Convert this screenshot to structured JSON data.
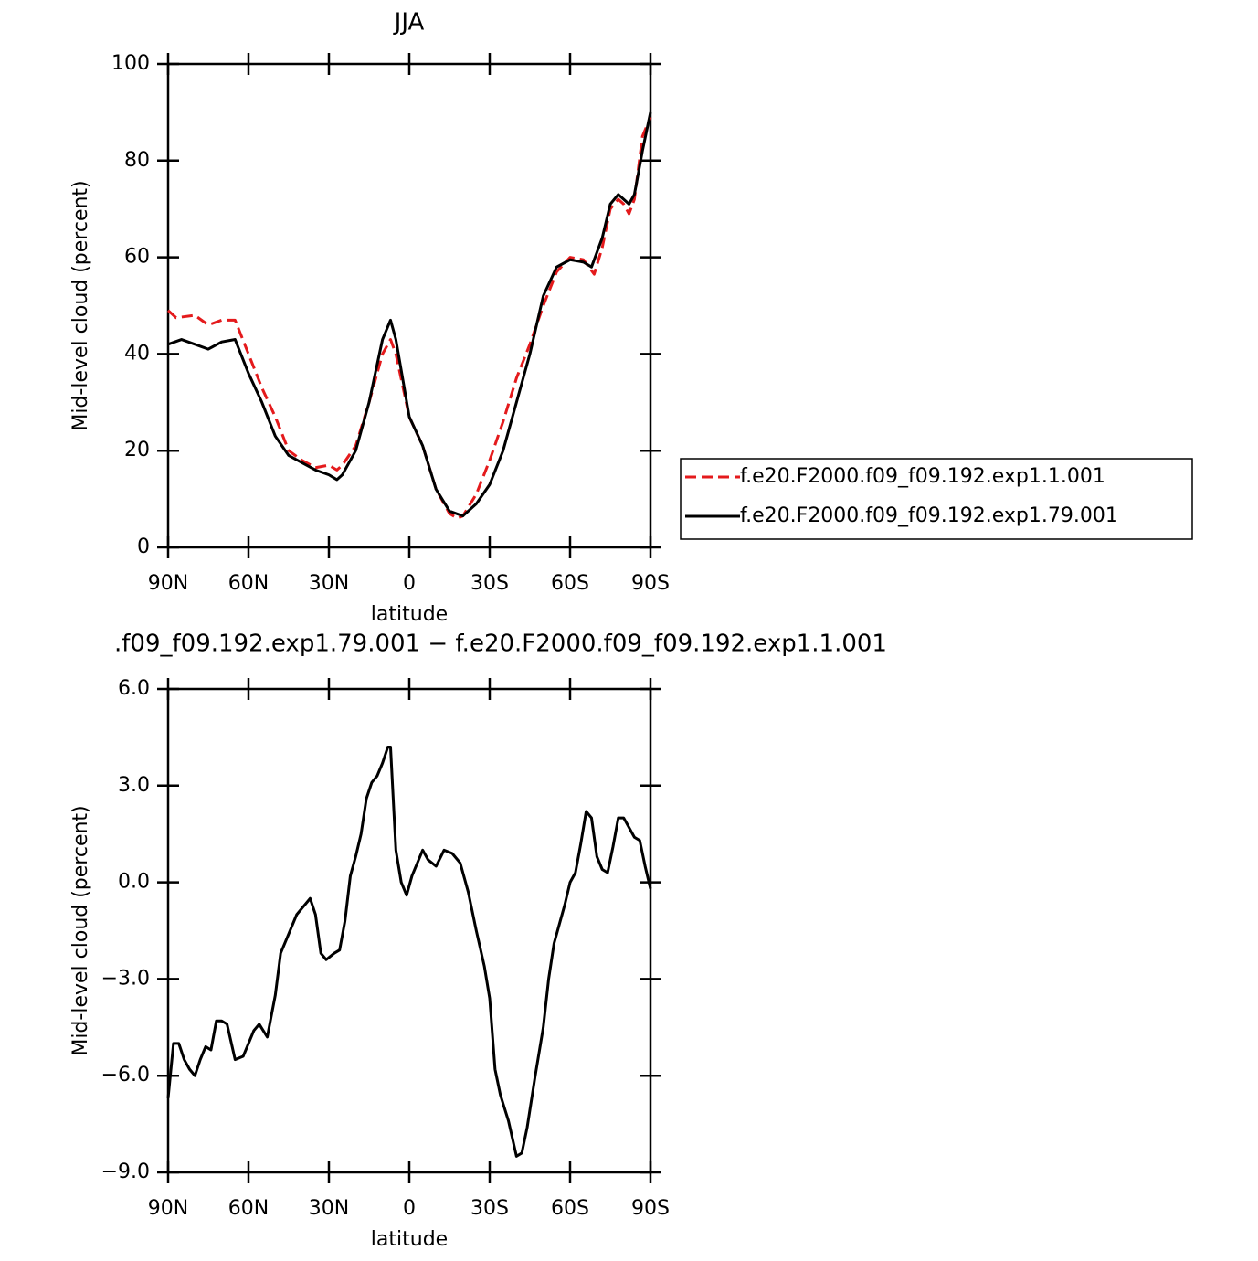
{
  "chart_data": [
    {
      "type": "line",
      "title": "JJA",
      "xlabel": "latitude",
      "ylabel": "Mid-level cloud (percent)",
      "xlim": [
        90,
        -90
      ],
      "ylim": [
        0,
        100
      ],
      "yticks": [
        0,
        20,
        40,
        60,
        80,
        100
      ],
      "xticks": [
        {
          "value": 90,
          "label": "90N"
        },
        {
          "value": 60,
          "label": "60N"
        },
        {
          "value": 30,
          "label": "30N"
        },
        0,
        {
          "value": -30,
          "label": "30S"
        },
        {
          "value": -60,
          "label": "60S"
        },
        {
          "value": -90,
          "label": "90S"
        }
      ],
      "legend": "right",
      "series": [
        {
          "name": "f.e20.F2000.f09_f09.192.exp1.1.001",
          "color": "#e41a1c",
          "dashed": true,
          "x": [
            90,
            87,
            80,
            75,
            70,
            65,
            60,
            55,
            50,
            45,
            40,
            35,
            30,
            27,
            25,
            20,
            15,
            10,
            7,
            5,
            0,
            -5,
            -10,
            -15,
            -18,
            -20,
            -25,
            -30,
            -35,
            -40,
            -45,
            -50,
            -55,
            -60,
            -65,
            -69,
            -72,
            -75,
            -78,
            -80,
            -82,
            -84,
            -87,
            -90
          ],
          "values": [
            49,
            47.5,
            48,
            46,
            47,
            47,
            40,
            33,
            27,
            20,
            18,
            16.5,
            17,
            16,
            17,
            21,
            30,
            40,
            43,
            40,
            27,
            21,
            12,
            7,
            6,
            6.5,
            11,
            18,
            26,
            35,
            42,
            50,
            57,
            60,
            59.5,
            56.5,
            62,
            70,
            72,
            71,
            69,
            72,
            85,
            89
          ]
        },
        {
          "name": "f.e20.F2000.f09_f09.192.exp1.79.001",
          "color": "#000000",
          "dashed": false,
          "x": [
            90,
            85,
            80,
            75,
            70,
            65,
            60,
            55,
            50,
            45,
            40,
            35,
            30,
            27,
            25,
            20,
            15,
            10,
            7,
            5,
            0,
            -5,
            -10,
            -15,
            -20,
            -25,
            -30,
            -35,
            -40,
            -45,
            -50,
            -55,
            -60,
            -65,
            -68,
            -72,
            -75,
            -78,
            -80,
            -82,
            -84,
            -87,
            -90
          ],
          "values": [
            42,
            43,
            42,
            41,
            42.5,
            43,
            36,
            30,
            23,
            19,
            17.5,
            16,
            15,
            14,
            15,
            20,
            30,
            43,
            47,
            43,
            27,
            21,
            12,
            7.5,
            6.5,
            9,
            13,
            20,
            30,
            40,
            52,
            58,
            59.5,
            59,
            58,
            64,
            71,
            73,
            72,
            71,
            73,
            82,
            90
          ]
        }
      ]
    },
    {
      "type": "line",
      "title": ".f09_f09.192.exp1.79.001 − f.e20.F2000.f09_f09.192.exp1.1.001",
      "xlabel": "latitude",
      "ylabel": "Mid-level cloud (percent)",
      "xlim": [
        90,
        -90
      ],
      "ylim": [
        -9,
        6
      ],
      "yticks": [
        {
          "value": -9,
          "label": "−9.0"
        },
        {
          "value": -6,
          "label": "−6.0"
        },
        {
          "value": -3,
          "label": "−3.0"
        },
        {
          "value": 0,
          "label": "0.0"
        },
        {
          "value": 3,
          "label": "3.0"
        },
        {
          "value": 6,
          "label": "6.0"
        }
      ],
      "xticks": [
        {
          "value": 90,
          "label": "90N"
        },
        {
          "value": 60,
          "label": "60N"
        },
        {
          "value": 30,
          "label": "30N"
        },
        0,
        {
          "value": -30,
          "label": "30S"
        },
        {
          "value": -60,
          "label": "60S"
        },
        {
          "value": -90,
          "label": "90S"
        }
      ],
      "series": [
        {
          "color": "#000000",
          "dashed": false,
          "x": [
            90,
            88,
            86,
            84,
            82,
            80,
            78,
            76,
            74,
            72,
            70,
            68,
            65,
            62,
            58,
            56,
            53,
            50,
            48,
            45,
            42,
            40,
            37,
            35,
            33,
            31,
            28,
            26,
            24,
            22,
            20,
            18,
            16,
            14,
            12,
            10,
            8,
            7,
            5,
            3,
            1,
            -1,
            -3,
            -5,
            -7,
            -10,
            -13,
            -16,
            -19,
            -22,
            -25,
            -28,
            -30,
            -32,
            -34,
            -37,
            -40,
            -42,
            -44,
            -47,
            -50,
            -52,
            -54,
            -56,
            -58,
            -60,
            -62,
            -64,
            -66,
            -68,
            -70,
            -72,
            -74,
            -76,
            -78,
            -80,
            -82,
            -84,
            -86,
            -88,
            -90
          ],
          "values": [
            -6.7,
            -5,
            -5,
            -5.5,
            -5.8,
            -6,
            -5.5,
            -5.1,
            -5.2,
            -4.3,
            -4.3,
            -4.4,
            -5.5,
            -5.4,
            -4.6,
            -4.4,
            -4.8,
            -3.5,
            -2.2,
            -1.6,
            -1,
            -0.8,
            -0.5,
            -1,
            -2.2,
            -2.4,
            -2.2,
            -2.1,
            -1.2,
            0.2,
            0.8,
            1.5,
            2.6,
            3.1,
            3.3,
            3.7,
            4.2,
            4.2,
            1,
            0,
            -0.4,
            0.2,
            0.6,
            1,
            0.7,
            0.5,
            1,
            0.9,
            0.6,
            -0.3,
            -1.5,
            -2.6,
            -3.6,
            -5.8,
            -6.6,
            -7.4,
            -8.5,
            -8.4,
            -7.6,
            -6,
            -4.5,
            -3,
            -1.9,
            -1.3,
            -0.7,
            0,
            0.3,
            1.2,
            2.2,
            2,
            0.8,
            0.4,
            0.3,
            1.1,
            2,
            2,
            1.7,
            1.4,
            1.3,
            0.5,
            -0.2
          ]
        }
      ]
    }
  ]
}
